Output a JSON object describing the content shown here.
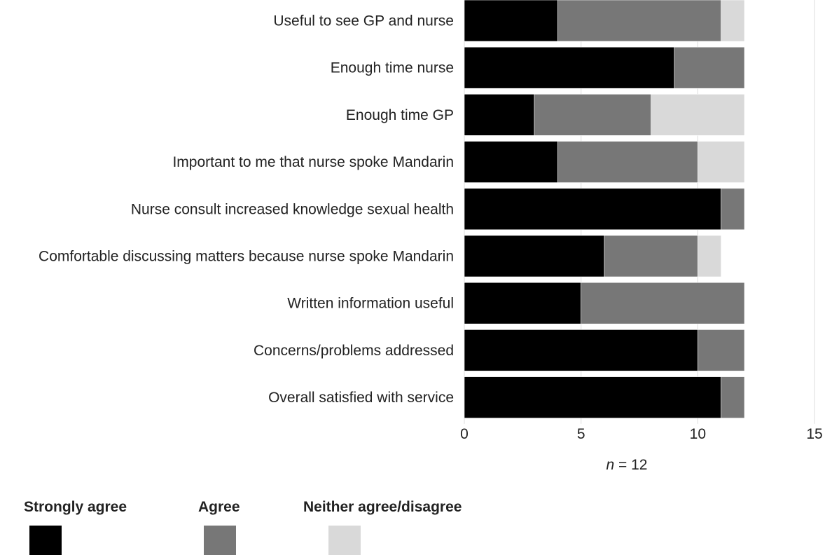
{
  "chart_data": {
    "type": "bar",
    "orientation": "horizontal",
    "stacked": true,
    "categories": [
      "Useful to see GP and nurse",
      "Enough time nurse",
      "Enough time GP",
      "Important to me that nurse spoke Mandarin",
      "Nurse consult increased knowledge sexual health",
      "Comfortable discussing matters because nurse spoke Mandarin",
      "Written information useful",
      "Concerns/problems addressed",
      "Overall satisfied with service"
    ],
    "series": [
      {
        "name": "Strongly agree",
        "color": "#000000",
        "values": [
          4,
          9,
          3,
          4,
          11,
          6,
          5,
          10,
          11
        ]
      },
      {
        "name": "Agree",
        "color": "#777777",
        "values": [
          7,
          3,
          5,
          6,
          1,
          4,
          7,
          2,
          1
        ]
      },
      {
        "name": "Neither agree/disagree",
        "color": "#d9d9d9",
        "values": [
          1,
          0,
          4,
          2,
          0,
          1,
          0,
          0,
          0
        ]
      }
    ],
    "xlim": [
      0,
      15
    ],
    "xticks": [
      0,
      5,
      10,
      15
    ],
    "xlabel_italic": "n",
    "xlabel_rest": " = 12",
    "grid": true,
    "legend_position": "bottom"
  }
}
